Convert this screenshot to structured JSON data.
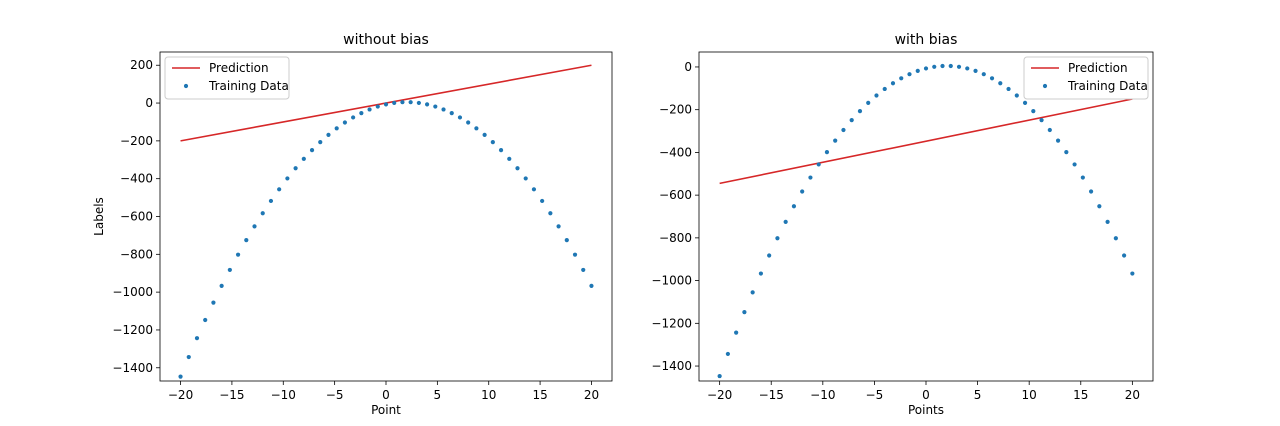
{
  "chart_data": [
    {
      "type": "line+scatter",
      "title": "without bias",
      "xlabel": "Point",
      "ylabel": "Labels",
      "xlim": [
        -22,
        22
      ],
      "ylim": [
        -1470,
        270
      ],
      "xticks": [
        -20,
        -15,
        -10,
        -5,
        0,
        5,
        10,
        15,
        20
      ],
      "yticks": [
        200,
        0,
        -200,
        -400,
        -600,
        -800,
        -1000,
        -1200,
        -1400
      ],
      "legend": {
        "position": "upper-left",
        "entries": [
          "Prediction",
          "Training Data"
        ]
      },
      "grid": false,
      "series": [
        {
          "name": "Prediction",
          "kind": "line",
          "color": "#d62728",
          "x": [
            -20,
            20
          ],
          "y": [
            -200,
            200
          ]
        },
        {
          "name": "Training Data",
          "kind": "scatter",
          "color": "#1f77b4",
          "formula": "y = -3 * (x - 2)^2 + 5, x from -20 to 20 step 0.8"
        }
      ]
    },
    {
      "type": "line+scatter",
      "title": "with bias",
      "xlabel": "Points",
      "ylabel": "",
      "xlim": [
        -22,
        22
      ],
      "ylim": [
        -1470,
        70
      ],
      "xticks": [
        -20,
        -15,
        -10,
        -5,
        0,
        5,
        10,
        15,
        20
      ],
      "yticks": [
        0,
        -200,
        -400,
        -600,
        -800,
        -1000,
        -1200,
        -1400
      ],
      "legend": {
        "position": "upper-right",
        "entries": [
          "Prediction",
          "Training Data"
        ]
      },
      "grid": false,
      "series": [
        {
          "name": "Prediction",
          "kind": "line",
          "color": "#d62728",
          "x": [
            -20,
            20
          ],
          "y": [
            -545,
            -150
          ]
        },
        {
          "name": "Training Data",
          "kind": "scatter",
          "color": "#1f77b4",
          "formula": "y = -3 * (x - 2)^2 + 5, x from -20 to 20 step 0.8"
        }
      ]
    }
  ]
}
